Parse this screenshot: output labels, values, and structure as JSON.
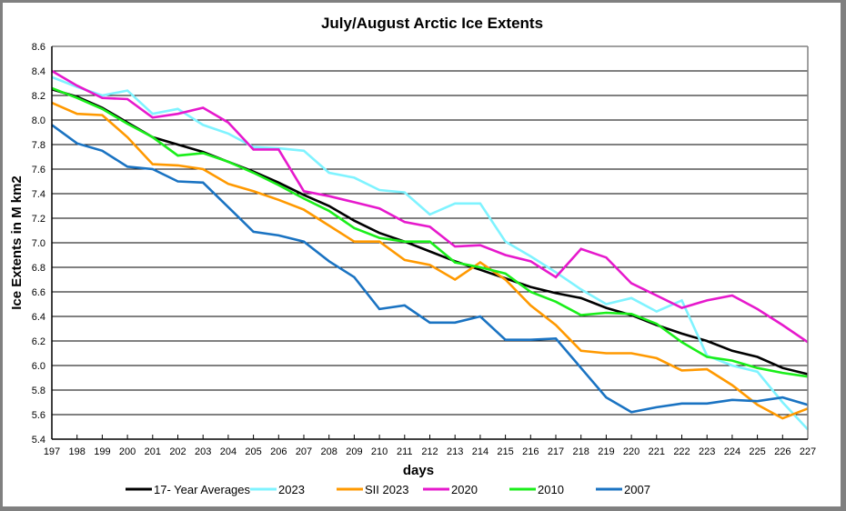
{
  "chart_data": {
    "type": "line",
    "title": "July/August Arctic Ice Extents",
    "xlabel": "days",
    "ylabel": "Ice Extents in M km2",
    "x": [
      197,
      198,
      199,
      200,
      201,
      202,
      203,
      204,
      205,
      206,
      207,
      208,
      209,
      210,
      211,
      212,
      213,
      214,
      215,
      216,
      217,
      218,
      219,
      220,
      221,
      222,
      223,
      224,
      225,
      226,
      227
    ],
    "xlim": [
      197,
      227
    ],
    "ylim": [
      5.4,
      8.6
    ],
    "yticks": [
      "5.4",
      "5.6",
      "5.8",
      "6.0",
      "6.2",
      "6.4",
      "6.6",
      "6.8",
      "7.0",
      "7.2",
      "7.4",
      "7.6",
      "7.8",
      "8.0",
      "8.2",
      "8.4",
      "8.6"
    ],
    "ytick_values": [
      5.4,
      5.6,
      5.8,
      6.0,
      6.2,
      6.4,
      6.6,
      6.8,
      7.0,
      7.2,
      7.4,
      7.6,
      7.8,
      8.0,
      8.2,
      8.4,
      8.6
    ],
    "grid": "horizontal",
    "legend_position": "bottom",
    "series": [
      {
        "name": "17- Year Averages",
        "color": "#000000",
        "values": [
          8.25,
          8.19,
          8.1,
          7.98,
          7.86,
          7.8,
          7.74,
          7.66,
          7.58,
          7.49,
          7.39,
          7.3,
          7.18,
          7.08,
          7.01,
          6.93,
          6.85,
          6.78,
          6.71,
          6.64,
          6.59,
          6.55,
          6.47,
          6.41,
          6.33,
          6.26,
          6.2,
          6.12,
          6.07,
          5.98,
          5.93
        ]
      },
      {
        "name": "2023",
        "color": "#7ff3ff",
        "values": [
          8.35,
          8.27,
          8.2,
          8.24,
          8.05,
          8.09,
          7.96,
          7.89,
          7.78,
          7.77,
          7.75,
          7.57,
          7.53,
          7.43,
          7.41,
          7.23,
          7.32,
          7.32,
          7.01,
          6.89,
          6.76,
          6.62,
          6.5,
          6.55,
          6.44,
          6.53,
          6.08,
          6.0,
          5.95,
          5.7,
          5.48
        ]
      },
      {
        "name": "SII 2023",
        "color": "#ff9900",
        "values": [
          8.14,
          8.05,
          8.04,
          7.86,
          7.64,
          7.63,
          7.6,
          7.48,
          7.42,
          7.35,
          7.27,
          7.14,
          7.01,
          7.01,
          6.86,
          6.82,
          6.7,
          6.84,
          6.7,
          6.49,
          6.33,
          6.12,
          6.1,
          6.1,
          6.06,
          5.96,
          5.97,
          5.84,
          5.68,
          5.57,
          5.65
        ]
      },
      {
        "name": "2020",
        "color": "#e619cc",
        "values": [
          8.4,
          8.28,
          8.18,
          8.17,
          8.02,
          8.05,
          8.1,
          7.98,
          7.76,
          7.76,
          7.42,
          7.38,
          7.33,
          7.28,
          7.17,
          7.13,
          6.97,
          6.98,
          6.9,
          6.85,
          6.72,
          6.95,
          6.88,
          6.67,
          6.57,
          6.47,
          6.53,
          6.57,
          6.46,
          6.33,
          6.19
        ]
      },
      {
        "name": "2010",
        "color": "#1aee1a",
        "values": [
          8.26,
          8.18,
          8.09,
          7.97,
          7.86,
          7.71,
          7.73,
          7.66,
          7.57,
          7.47,
          7.36,
          7.26,
          7.12,
          7.04,
          7.01,
          7.01,
          6.84,
          6.8,
          6.75,
          6.6,
          6.52,
          6.41,
          6.43,
          6.42,
          6.34,
          6.19,
          6.07,
          6.04,
          5.98,
          5.94,
          5.91
        ]
      },
      {
        "name": "2007",
        "color": "#1a73c2",
        "values": [
          7.96,
          7.81,
          7.75,
          7.62,
          7.6,
          7.5,
          7.49,
          7.29,
          7.09,
          7.06,
          7.01,
          6.85,
          6.72,
          6.46,
          6.49,
          6.35,
          6.35,
          6.4,
          6.21,
          6.21,
          6.22,
          5.98,
          5.74,
          5.62,
          5.66,
          5.69,
          5.69,
          5.72,
          5.71,
          5.74,
          5.68
        ]
      }
    ]
  }
}
